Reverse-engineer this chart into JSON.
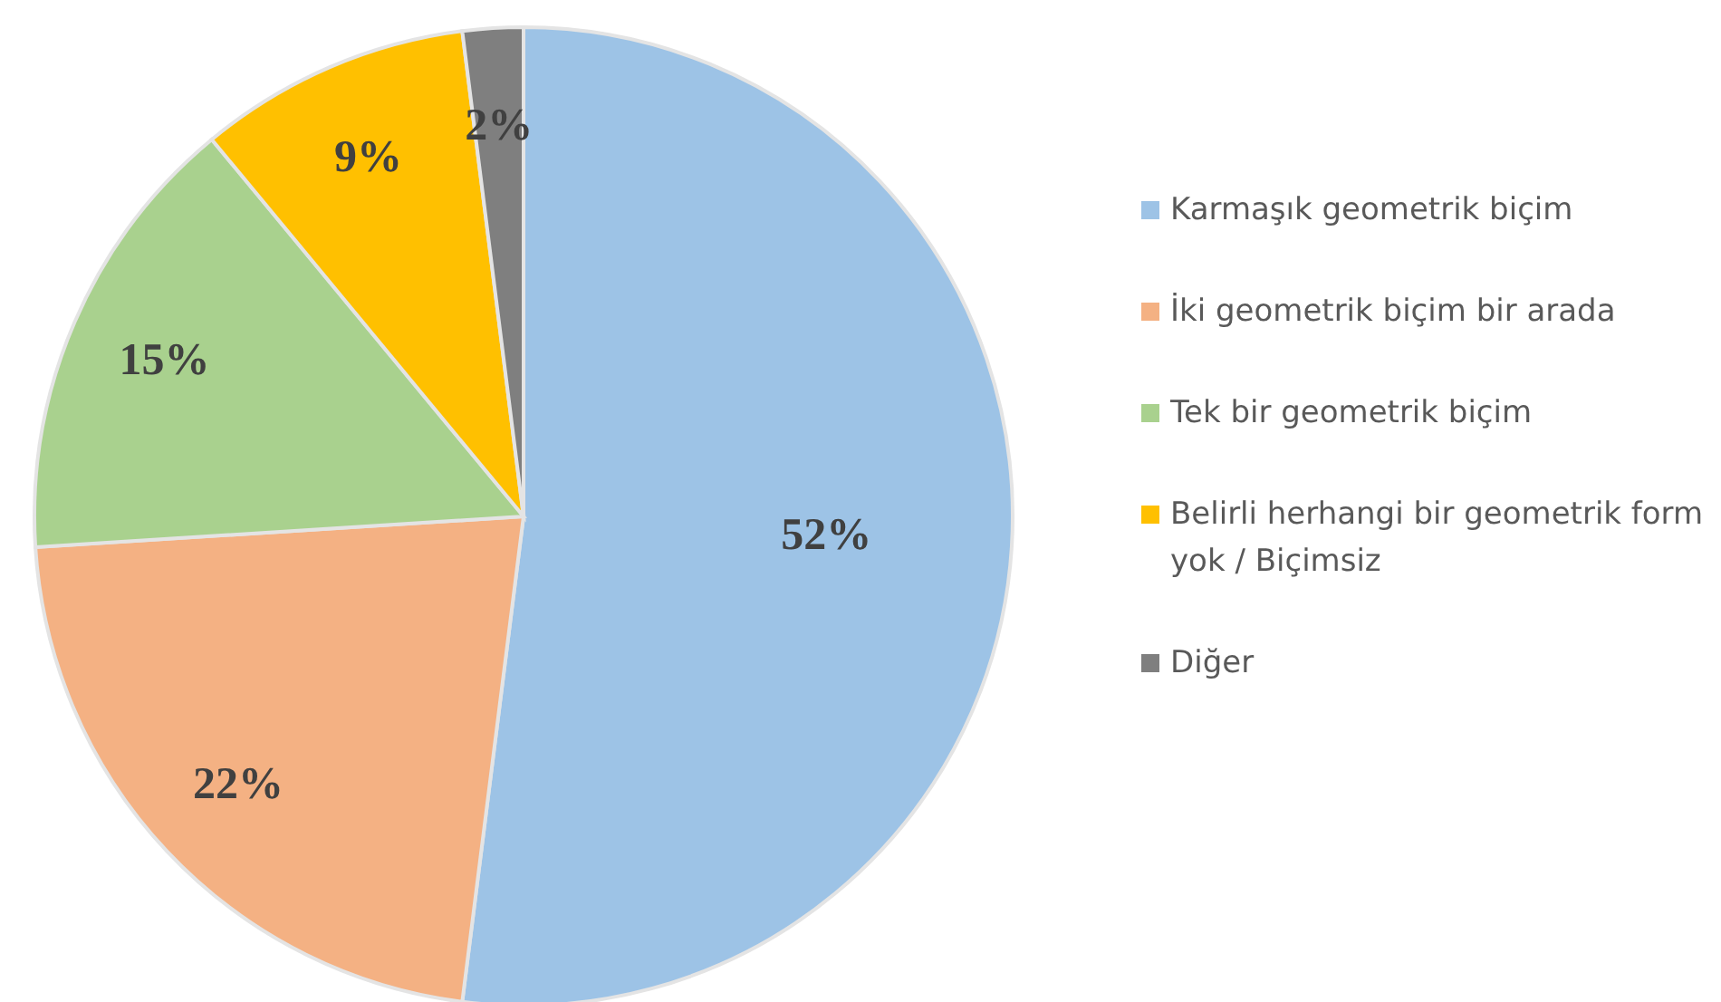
{
  "chart_data": {
    "type": "pie",
    "categories": [
      "Karmaşık geometrik biçim",
      "İki geometrik biçim bir arada",
      "Tek bir geometrik biçim",
      "Belirli herhangi bir geometrik form yok / Biçimsiz",
      "Diğer"
    ],
    "values": [
      52,
      22,
      15,
      9,
      2
    ],
    "colors": [
      "#9dc3e6",
      "#f4b183",
      "#a9d18e",
      "#ffc000",
      "#7f7f7f"
    ],
    "value_labels": [
      "52%",
      "22%",
      "15%",
      "9%",
      "2%"
    ],
    "legend": "right"
  }
}
